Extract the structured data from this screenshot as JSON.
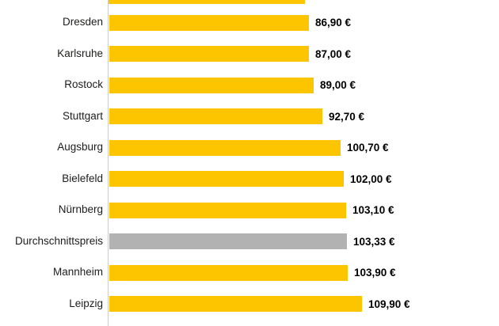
{
  "chart_data": {
    "type": "bar",
    "orientation": "horizontal",
    "title": "",
    "categories": [
      "Dresden",
      "Karlsruhe",
      "Rostock",
      "Stuttgart",
      "Augsburg",
      "Bielefeld",
      "Nürnberg",
      "Durchschnittspreis",
      "Mannheim",
      "Leipzig"
    ],
    "values": [
      86.9,
      87.0,
      89.0,
      92.7,
      100.7,
      102.0,
      103.1,
      103.33,
      103.9,
      109.9
    ],
    "value_labels": [
      "86,90 €",
      "87,00 €",
      "89,00 €",
      "92,70 €",
      "100,70 €",
      "102,00 €",
      "103,10 €",
      "103,33 €",
      "103,90 €",
      "109,90 €"
    ],
    "unit": "EUR",
    "highlight_category": "Durchschnittspreis",
    "xlim": [
      0,
      120
    ],
    "grid": false,
    "legend": false,
    "sorted": "ascending",
    "clipped_top_bar_approx_value": 85.5
  },
  "colors": {
    "bar": "#FDC500",
    "highlight_bar": "#B2B2B2",
    "axis_line": "#CCCCCC",
    "label_text": "#1D1D1B",
    "value_text": "#000000"
  }
}
